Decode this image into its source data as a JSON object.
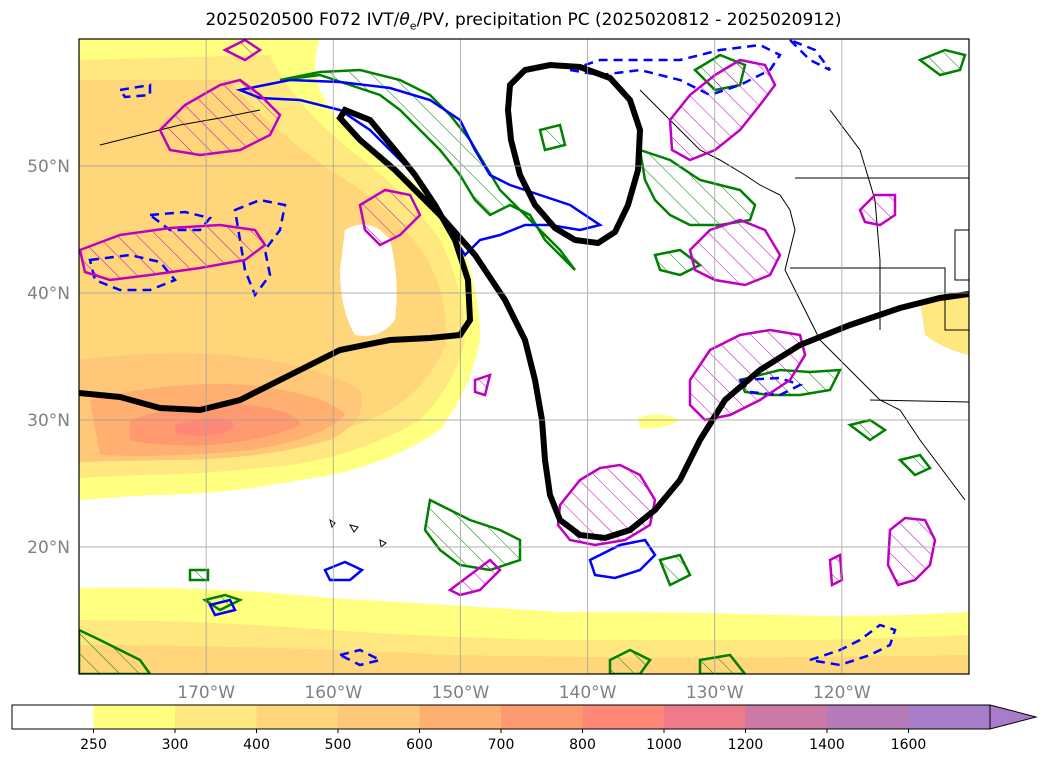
{
  "figure": {
    "title_prefix": "2025020500 F072 IVT/",
    "title_theta": "θ",
    "title_theta_sub": "e",
    "title_suffix": "/PV, precipitation PC (2025020812 - 2025020912)"
  },
  "axes": {
    "lat_labels": [
      "50°N",
      "40°N",
      "30°N",
      "20°N"
    ],
    "lon_labels": [
      "170°W",
      "160°W",
      "150°W",
      "140°W",
      "130°W",
      "120°W"
    ],
    "lat_values": [
      50,
      40,
      30,
      20
    ],
    "lon_values": [
      -170,
      -160,
      -150,
      -140,
      -130,
      -120
    ],
    "lon_range": [
      -180,
      -110
    ],
    "lat_range": [
      10,
      60
    ],
    "grid": true
  },
  "colorbar": {
    "levels": [
      "250",
      "300",
      "400",
      "500",
      "600",
      "700",
      "800",
      "1000",
      "1200",
      "1400",
      "1600"
    ],
    "colors": [
      "#ffffff",
      "#ffff80",
      "#ffe880",
      "#ffd67a",
      "#ffc878",
      "#ffb070",
      "#ff9a70",
      "#ff8878",
      "#ee7a8a",
      "#cc79a8",
      "#b57ab8",
      "#a77cc8"
    ],
    "extend": "max"
  },
  "layers": {
    "ivt_fill": "yellow-orange shading",
    "pv_contour_color": "#000000",
    "green_contour_color": "#008000",
    "blue_contour_color": "#0000ff",
    "magenta_contour_color": "#c000c0"
  }
}
